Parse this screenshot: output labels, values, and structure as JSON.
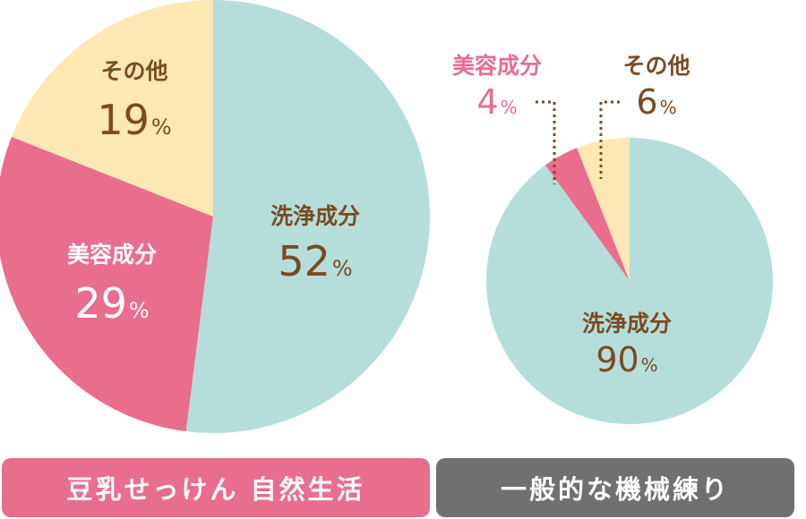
{
  "colors": {
    "cleansing": "#b5dedb",
    "beauty": "#e96d8d",
    "other": "#fde8b4",
    "label_brown": "#7a4b22",
    "label_white": "#ffffff",
    "label_pink": "#e96d8d",
    "caption_left_bg": "#e96d8d",
    "caption_right_bg": "#707070"
  },
  "chart_data": [
    {
      "type": "pie",
      "title": "豆乳せっけん 自然生活",
      "slices": [
        {
          "label": "洗浄成分",
          "value": 52,
          "value_text": "52",
          "unit": "%",
          "color": "#b5dedb"
        },
        {
          "label": "美容成分",
          "value": 29,
          "value_text": "29",
          "unit": "%",
          "color": "#e96d8d"
        },
        {
          "label": "その他",
          "value": 19,
          "value_text": "19",
          "unit": "%",
          "color": "#fde8b4"
        }
      ]
    },
    {
      "type": "pie",
      "title": "一般的な機械練り",
      "slices": [
        {
          "label": "洗浄成分",
          "value": 90,
          "value_text": "90",
          "unit": "%",
          "color": "#b5dedb"
        },
        {
          "label": "美容成分",
          "value": 4,
          "value_text": "4",
          "unit": "%",
          "color": "#e96d8d"
        },
        {
          "label": "その他",
          "value": 6,
          "value_text": "6",
          "unit": "%",
          "color": "#fde8b4"
        }
      ]
    }
  ]
}
